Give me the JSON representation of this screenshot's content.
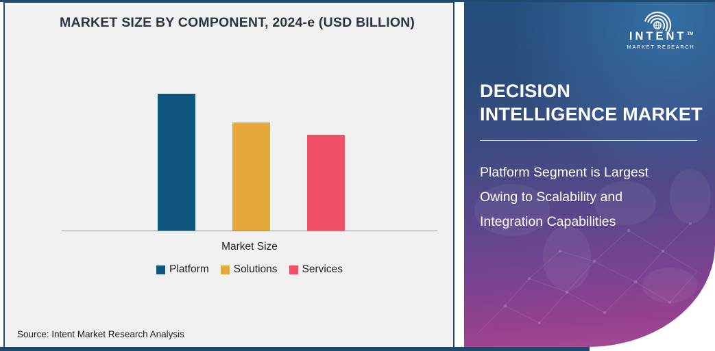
{
  "chart_panel": {
    "title": "MARKET SIZE BY COMPONENT, 2024-e (USD BILLION)",
    "xaxis_label": "Market Size",
    "source": "Source: Intent Market Research Analysis"
  },
  "chart_data": {
    "type": "bar",
    "title": "MARKET SIZE BY COMPONENT, 2024-e (USD BILLION)",
    "categories": [
      "Market Size"
    ],
    "series": [
      {
        "name": "Platform",
        "color": "#0e567f",
        "values": [
          100
        ]
      },
      {
        "name": "Solutions",
        "color": "#e3a93a",
        "values": [
          79
        ]
      },
      {
        "name": "Services",
        "color": "#f25064",
        "values": [
          70
        ]
      }
    ],
    "xlabel": "Market Size",
    "ylabel": "",
    "ylim": [
      0,
      120
    ],
    "grid": false,
    "value_axis_shown": false,
    "value_labels_shown": false,
    "legend_position": "bottom"
  },
  "info_panel": {
    "logo": {
      "brand": "INTENT",
      "trademark": "TM",
      "subtitle": "MARKET RESEARCH",
      "icon": "signal-arcs-globe-icon"
    },
    "heading_line1": "DECISION",
    "heading_line2": "INTELLIGENCE MARKET",
    "description": "Platform Segment is Largest Owing to Scalability and Integration Capabilities"
  },
  "colors": {
    "platform_bar": "#0e567f",
    "solutions_bar": "#e3a93a",
    "services_bar": "#f25064",
    "chart_background": "#f1f1f2",
    "chart_border": "#1e4e6b",
    "accent_bar": "#1d4a6e",
    "panel_gradient_top": "#234e7c",
    "panel_gradient_bottom": "#a64a94",
    "title_text": "#2b3340",
    "panel_text": "#ffffff"
  }
}
